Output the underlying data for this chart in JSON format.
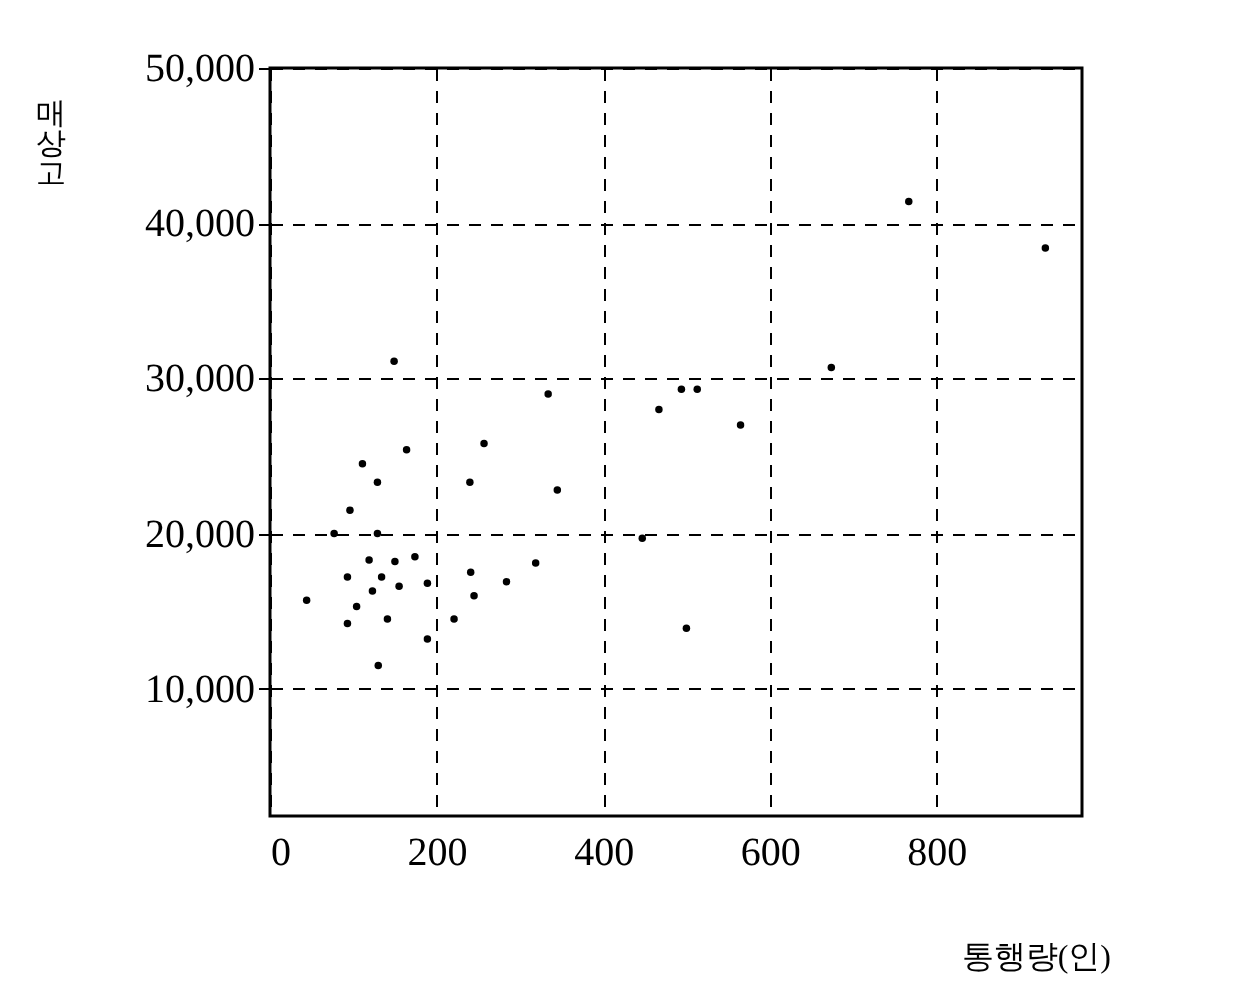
{
  "chart_data": {
    "type": "scatter",
    "xlabel": "통행량(인)",
    "ylabel": "매상고",
    "x": [
      44,
      77,
      96,
      93,
      93,
      104,
      111,
      119,
      123,
      129,
      129,
      134,
      130,
      141,
      149,
      150,
      155,
      164,
      174,
      189,
      189,
      221,
      240,
      241,
      245,
      257,
      284,
      319,
      334,
      345,
      447,
      467,
      494,
      513,
      500,
      565,
      674,
      767,
      931
    ],
    "series": [
      {
        "color": "#000000",
        "values": [
          15700,
          20000,
          21500,
          17200,
          14200,
          15300,
          24500,
          18300,
          16300,
          23300,
          20000,
          17200,
          11500,
          14500,
          31100,
          18200,
          16600,
          25400,
          18500,
          16800,
          13200,
          14500,
          23300,
          17500,
          16000,
          25800,
          16900,
          18100,
          29000,
          22800,
          19700,
          28000,
          29300,
          29300,
          13900,
          27000,
          30700,
          41400,
          38400
        ]
      }
    ],
    "xlim": [
      0,
      975
    ],
    "ylim": [
      1800,
      50000
    ],
    "xticks": [
      0,
      200,
      400,
      600,
      800
    ],
    "yticks": [
      {
        "value": 10000,
        "label": "10,000"
      },
      {
        "value": 20000,
        "label": "20,000"
      },
      {
        "value": 30000,
        "label": "30,000"
      },
      {
        "value": 40000,
        "label": "40,000"
      },
      {
        "value": 50000,
        "label": "50,000"
      }
    ],
    "grid": true,
    "marker": "circle"
  }
}
